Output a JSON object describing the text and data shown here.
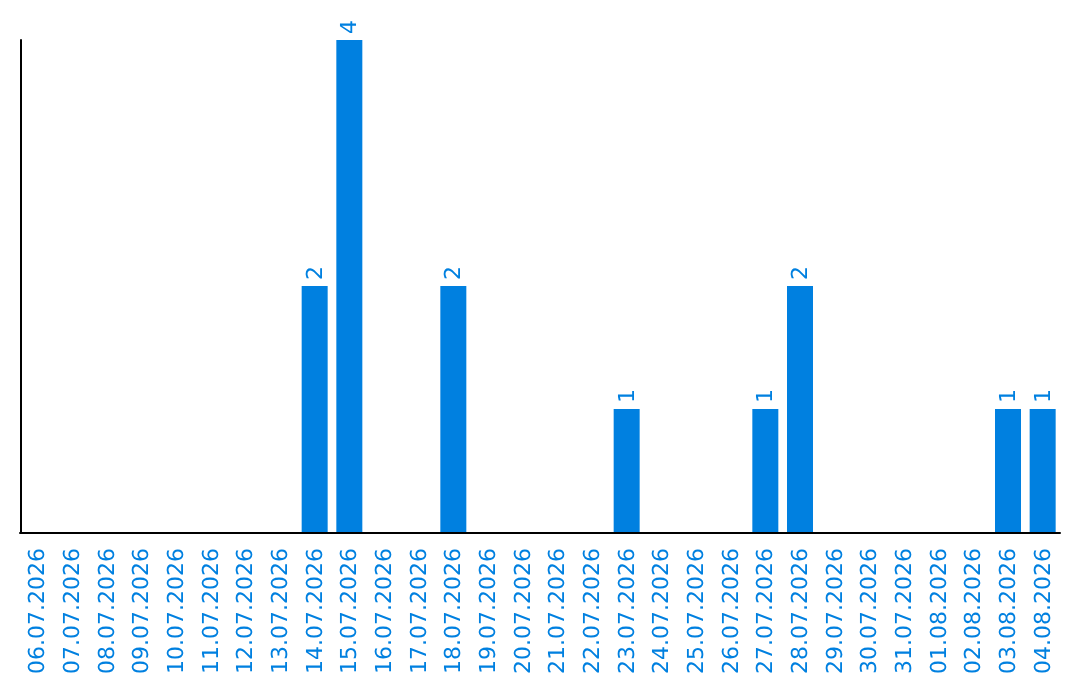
{
  "chart_data": {
    "type": "bar",
    "categories": [
      "06.07.2026",
      "07.07.2026",
      "08.07.2026",
      "09.07.2026",
      "10.07.2026",
      "11.07.2026",
      "12.07.2026",
      "13.07.2026",
      "14.07.2026",
      "15.07.2026",
      "16.07.2026",
      "17.07.2026",
      "18.07.2026",
      "19.07.2026",
      "20.07.2026",
      "21.07.2026",
      "22.07.2026",
      "23.07.2026",
      "24.07.2026",
      "25.07.2026",
      "26.07.2026",
      "27.07.2026",
      "28.07.2026",
      "29.07.2026",
      "30.07.2026",
      "31.07.2026",
      "01.08.2026",
      "02.08.2026",
      "03.08.2026",
      "04.08.2026"
    ],
    "values": [
      0,
      0,
      0,
      0,
      0,
      0,
      0,
      0,
      2,
      4,
      0,
      0,
      2,
      0,
      0,
      0,
      0,
      1,
      0,
      0,
      0,
      1,
      2,
      0,
      0,
      0,
      0,
      0,
      1,
      1
    ],
    "value_labels": [
      null,
      null,
      null,
      null,
      null,
      null,
      null,
      null,
      "2",
      "4",
      null,
      null,
      "2",
      null,
      null,
      null,
      null,
      "1",
      null,
      null,
      null,
      "1",
      "2",
      null,
      null,
      null,
      null,
      null,
      "1",
      "1"
    ],
    "color": "#0080e0",
    "tick_labels": "x"
  }
}
